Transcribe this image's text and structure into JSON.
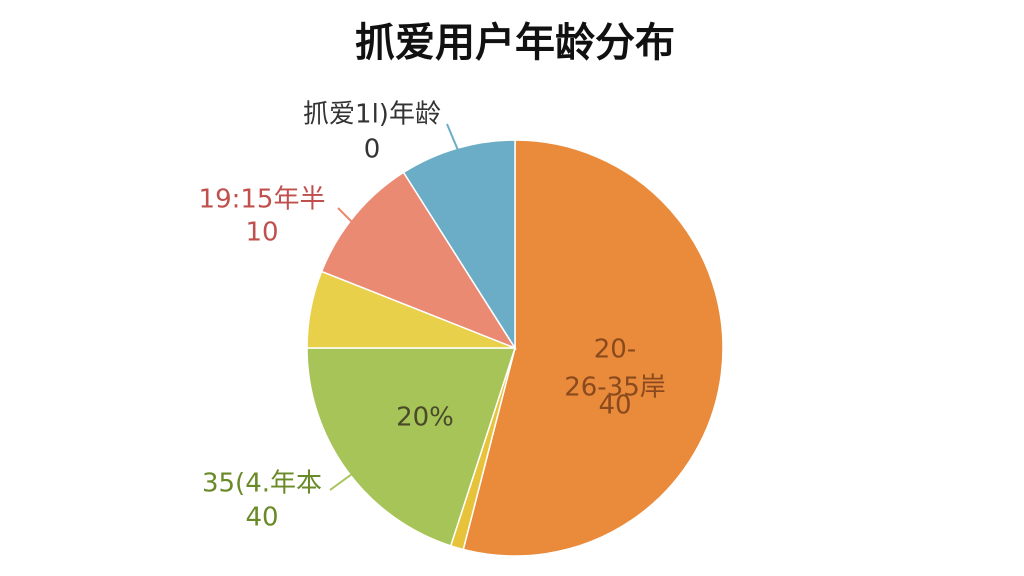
{
  "chart_data": {
    "type": "pie",
    "title": "抓爱用户年龄分布",
    "values": [
      54,
      1,
      20,
      6,
      10,
      9
    ],
    "colors": [
      "#e98b3b",
      "#e6c33a",
      "#a6c457",
      "#e9d04a",
      "#ea8a73",
      "#6badc6"
    ],
    "annotations": [
      {
        "lines": [
          "20-",
          "26-35岸",
          "40"
        ],
        "color": "#8a4a1e"
      },
      {
        "lines": [
          "20%"
        ],
        "color": "#4a4a2a"
      },
      {
        "lines": [
          "35(4.年本",
          "40"
        ],
        "color": "#6a8a28"
      },
      {
        "lines": [
          "19:15年半",
          "10"
        ],
        "color": "#c0504d"
      },
      {
        "lines": [
          "抓爱1l)年龄",
          "0"
        ],
        "color": "#333333"
      }
    ]
  }
}
